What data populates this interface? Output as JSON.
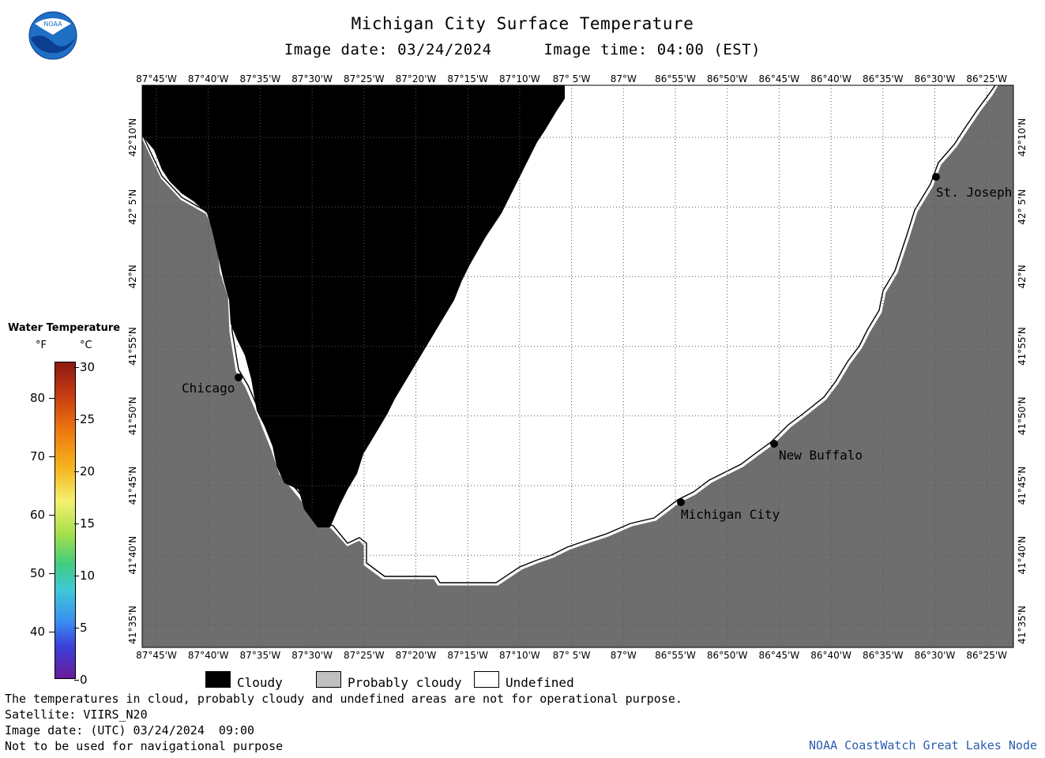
{
  "header": {
    "title": "Michigan City Surface Temperature",
    "image_date": "Image date: 03/24/2024",
    "image_time": "Image time: 04:00 (EST)"
  },
  "logo": {
    "text": "NOAA",
    "icon": "noaa-logo-icon"
  },
  "map": {
    "lon_labels": [
      "87°45'W",
      "87°40'W",
      "87°35'W",
      "87°30'W",
      "87°25'W",
      "87°20'W",
      "87°15'W",
      "87°10'W",
      "87° 5'W",
      "87°W",
      "86°55'W",
      "86°50'W",
      "86°45'W",
      "86°40'W",
      "86°35'W",
      "86°30'W",
      "86°25'W"
    ],
    "lat_labels": [
      "42°10'N",
      "42° 5'N",
      "42°N",
      "41°55'N",
      "41°50'N",
      "41°45'N",
      "41°40'N",
      "41°35'N"
    ],
    "cities": [
      {
        "name": "Chicago"
      },
      {
        "name": "St. Joseph"
      },
      {
        "name": "New Buffalo"
      },
      {
        "name": "Michigan City"
      }
    ],
    "colors": {
      "land": "#6e6e6e",
      "cloud": "#000000",
      "undefined": "#ffffff",
      "grid": "#555555"
    }
  },
  "color_scale": {
    "title": "Water Temperature",
    "unit_f": "°F",
    "unit_c": "°C",
    "f_labels": [
      "80",
      "70",
      "60",
      "50",
      "40"
    ],
    "c_labels": [
      "30",
      "25",
      "20",
      "15",
      "10",
      "5",
      "0"
    ]
  },
  "key": {
    "cloudy": "Cloudy",
    "probably_cloudy": "Probably cloudy",
    "undefined": "Undefined",
    "colors": {
      "cloudy": "#000000",
      "probably_cloudy": "#c0c0c0",
      "undefined": "#ffffff"
    }
  },
  "footer": {
    "line1": "The temperatures in cloud, probably cloudy and undefined areas are not for operational purpose.",
    "line2": "Satellite: VIIRS_N20",
    "line3": "Image date: (UTC) 03/24/2024  09:00",
    "line4": "Not to be used for navigational purpose",
    "credit": "NOAA CoastWatch Great Lakes Node"
  }
}
